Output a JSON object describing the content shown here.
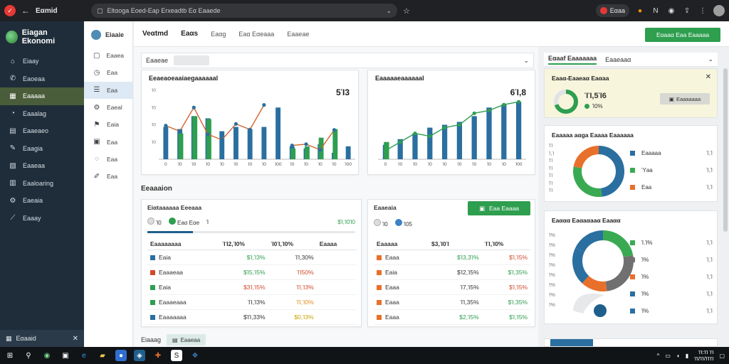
{
  "browser": {
    "app_title": "Eαmid",
    "url": "Eltαoga Eoed-Eap Erxeadtb Eα Eaaede",
    "profile_label": "Eαaa",
    "icons": [
      "back-arrow-icon",
      "star-icon",
      "extensions-icon",
      "menu-icon"
    ]
  },
  "brand": {
    "name": "Eiagan Ekonomi"
  },
  "sidebar": {
    "items": [
      {
        "label": "Eiaay",
        "icon": "home-icon",
        "glyph": "⌂"
      },
      {
        "label": "Eaoeaa",
        "icon": "phone-icon",
        "glyph": "✆"
      },
      {
        "label": "Eaaaaa",
        "icon": "grid-icon",
        "glyph": "▦",
        "active": true
      },
      {
        "label": "Eaaalag",
        "icon": "chat-icon",
        "glyph": "◔"
      },
      {
        "label": "Eaaeaeo",
        "icon": "document-icon",
        "glyph": "▤"
      },
      {
        "label": "Eaagia",
        "icon": "edit-icon",
        "glyph": "✎"
      },
      {
        "label": "Eaaeaa",
        "icon": "layers-icon",
        "glyph": "▧"
      },
      {
        "label": "Eaaloaring",
        "icon": "book-icon",
        "glyph": "▥"
      },
      {
        "label": "Eaeaia",
        "icon": "settings-icon",
        "glyph": "⚙"
      },
      {
        "label": "Eaaay",
        "icon": "chart-icon",
        "glyph": "⟋"
      }
    ],
    "bottom_label": "Eαaaid"
  },
  "subnav": {
    "title": "Eiaaie",
    "items": [
      {
        "label": "Eaaea",
        "icon": "box-icon",
        "glyph": "▢"
      },
      {
        "label": "Eaa",
        "icon": "clock-icon",
        "glyph": "◷"
      },
      {
        "label": "Eaa",
        "icon": "list-icon",
        "glyph": "☰",
        "active": true
      },
      {
        "label": "Eaeal",
        "icon": "gear-icon",
        "glyph": "⚙"
      },
      {
        "label": "Eaia",
        "icon": "flag-icon",
        "glyph": "⚑"
      },
      {
        "label": "Eaa",
        "icon": "lock-icon",
        "glyph": "▣"
      },
      {
        "label": "Eaa",
        "icon": "bubble-icon",
        "glyph": "◌"
      },
      {
        "label": "Eaa",
        "icon": "pen-icon",
        "glyph": "✐"
      }
    ]
  },
  "main": {
    "tabs": [
      "Veαtmd",
      "Eaαs",
      "Eaαg",
      "Eaα Eαeaaa",
      "Eaaeae"
    ],
    "filter_label": "Eaaeae",
    "section_title": "Eeaaaion",
    "bottom_label": "Eiaaag",
    "bottom_chip": "Eaaeaa"
  },
  "cards": {
    "bar_left": {
      "title": "Eeaeaoeaaiaegaaaaaal",
      "value": "5Ί3"
    },
    "bar_right": {
      "title": "Eaaaaaeaaaaaal",
      "value": "6Ί,8"
    }
  },
  "chart_data": [
    {
      "type": "bar",
      "categories": [
        "0",
        "Ί0",
        "Ί0",
        "Ί0",
        "Ί0",
        "Ί0",
        "Ί0",
        "Ί0",
        "Ί00",
        "Ί0",
        "Ί0",
        "Ί0",
        "Ί0",
        "Ί00"
      ],
      "series": [
        {
          "values": [
            7.5,
            7,
            10,
            9.5,
            6.5,
            7.5,
            7,
            7.5,
            12,
            3,
            2.5,
            3.5,
            1.5,
            3
          ]
        },
        {
          "values": [
            null,
            6,
            10,
            9.3,
            null,
            null,
            null,
            null,
            null,
            2.5,
            3,
            5,
            7,
            null
          ]
        }
      ],
      "line": [
        7.8,
        6.5,
        12,
        5.8,
        4.5,
        8.2,
        6.9,
        12.6,
        null,
        3.2,
        3.5,
        2.2,
        6.8,
        null
      ],
      "yticks": [
        "",
        "Ί0",
        "Ί0",
        "Ί0",
        "Ί0"
      ],
      "ylim": [
        0,
        16
      ]
    },
    {
      "type": "bar",
      "categories": [
        "0",
        "Ί0",
        "Ί0",
        "Ί0",
        "Ί0",
        "Ί0",
        "Ί0",
        "Ί0",
        "Ί0",
        "Ί00"
      ],
      "series": [
        {
          "values": [
            2.5,
            3.5,
            4.5,
            5.5,
            6,
            6.5,
            7.5,
            9,
            9.5,
            10
          ]
        },
        {
          "values": [
            3,
            null,
            null,
            null,
            null,
            null,
            null,
            null,
            null,
            null
          ]
        }
      ],
      "line": [
        1.5,
        3,
        4.5,
        4,
        5.5,
        6,
        8,
        8.5,
        9.5,
        10
      ],
      "ylim": [
        0,
        12
      ]
    },
    {
      "type": "pie",
      "labels": [
        "Eaaaaa",
        "Ύaa",
        "Eaa"
      ],
      "values": [
        48,
        30,
        22
      ],
      "colors": [
        "#2a6fa0",
        "#3aaa52",
        "#e8702a"
      ]
    },
    {
      "type": "pie",
      "labels": [
        "Ί.Ί%",
        "Ί%",
        "Ί%",
        "Ί%",
        "Ί%"
      ],
      "values": [
        22,
        26,
        14,
        20,
        18
      ],
      "colors": [
        "#3aaa52",
        "#707070",
        "#e8702a",
        "#2a6fa0",
        "#2a6fa0"
      ]
    }
  ],
  "table_left": {
    "tab_label": "Eiαtaaaaaa Eeeaaa",
    "filters": [
      "Ί0",
      "Eaα Eαe",
      "Ί"
    ],
    "filter_value": "$Ί,Ί0Ί0",
    "progress": 0.22,
    "headers": [
      "Eaaaaaaaa",
      "ΊΊ2,Ί0%",
      "Ί0Ί,Ί0%",
      "Eaaaa"
    ],
    "rows": [
      {
        "color": "#2a6fa0",
        "label": "Eaia",
        "c1": "$Ί,Ί3%",
        "c1c": "green",
        "c2": "ΊΊ,30%",
        "c2c": ""
      },
      {
        "color": "#d04a2a",
        "label": "Eaaaeaa",
        "c1": "$Ί5,Ί5%",
        "c1c": "green",
        "c2": "ΊΊ50%",
        "c2c": "red"
      },
      {
        "color": "#2e9e4f",
        "label": "Eaia",
        "c1": "$3Ί,Ί5%",
        "c1c": "red",
        "c2": "ΊΊ,Ί3%",
        "c2c": "red"
      },
      {
        "color": "#2e9e4f",
        "label": "Eaaaeaaa",
        "c1": "ΊΊ,Ί3%",
        "c1c": "",
        "c2": "ΊΊ,Ί0%",
        "c2c": "orange"
      },
      {
        "color": "#2a6fa0",
        "label": "Eaaaaaaa",
        "c1": "$ΊΊ,33%",
        "c1c": "",
        "c2": "$0,Ί3%",
        "c2c": "yellow"
      }
    ]
  },
  "table_right": {
    "tab_label": "Eaaeaia",
    "button_label": "Eaa Eaaaa",
    "filters": [
      "Ί0",
      "Ί05"
    ],
    "headers": [
      "Eaaaaa",
      "$3,Ί0Ί",
      "ΊΊ,Ί0%"
    ],
    "rows": [
      {
        "color": "#e8702a",
        "label": "Eaaa",
        "c1": "$Ί3,3Ί%",
        "c1c": "green",
        "c2": "$Ί,Ί5%",
        "c2c": "red"
      },
      {
        "color": "#e8702a",
        "label": "Eaia",
        "c1": "$Ί2,Ί5%",
        "c1c": "",
        "c2": "$Ί,35%",
        "c2c": "green"
      },
      {
        "color": "#e8702a",
        "label": "Eaaa",
        "c1": "Ί7,Ί5%",
        "c1c": "",
        "c2": "$Ί,Ί5%",
        "c2c": "red"
      },
      {
        "color": "#e8702a",
        "label": "Eaaa",
        "c1": "ΊΊ,35%",
        "c1c": "",
        "c2": "$Ί,35%",
        "c2c": "green"
      },
      {
        "color": "#e8702a",
        "label": "Eaaa",
        "c1": "$2,Ί5%",
        "c1c": "green",
        "c2": "$Ί,Ί5%",
        "c2c": "green"
      }
    ]
  },
  "rpanel": {
    "top_button": "Eαaaα Eaa Eaaaaa",
    "tabs": [
      "Eαaaf Eaaaaaaa",
      "Eaaeaaα"
    ],
    "kpi": {
      "title": "Eaaα-Eaaeaα Eaαaa",
      "value": "ΊΊ,5Ί6",
      "sub": "Ί0%",
      "button": "Eaaaaaaa",
      "progress": 0.7
    },
    "donut1": {
      "title": "Eaaaaa aαga Eaaaa Eaaaaaa",
      "right_values": [
        "Ί,Ί",
        "Ί,Ί",
        "Ί,Ί"
      ],
      "ticks": [
        "ΊΊ",
        "Ί,Ί",
        "ΊΊ",
        "ΊΊ",
        "ΊΊ",
        "ΊΊ",
        "ΊΊ"
      ]
    },
    "donut2": {
      "title": "Eaααα Eaαaαaaα Eaaαα",
      "right_values": [
        "Ί,Ί",
        "Ί,Ί",
        "Ί,Ί",
        "Ί,Ί",
        "Ί,Ί"
      ],
      "ticks": [
        "Ί%",
        "Ί%",
        "Ί%",
        "Ί%",
        "Ί%",
        "Ί%",
        "Ί%",
        "Ί%"
      ]
    }
  },
  "taskbar": {
    "time": "ΊΊ:ΊΊ ΊΊ",
    "date": "ΊΊ/ΊΊ/ΊΊΊΊ"
  }
}
